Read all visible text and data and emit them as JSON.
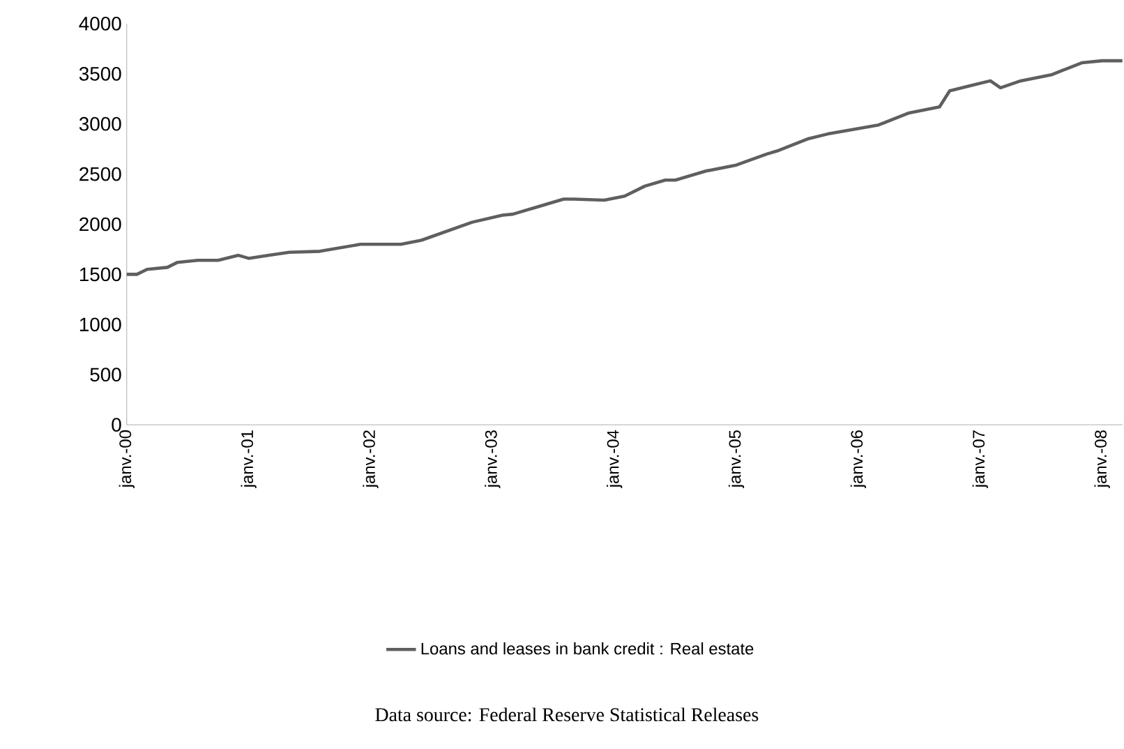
{
  "chart_data": {
    "type": "line",
    "x": [
      "2000-01",
      "2000-02",
      "2000-03",
      "2000-05",
      "2000-06",
      "2000-08",
      "2000-10",
      "2000-12",
      "2001-01",
      "2001-03",
      "2001-05",
      "2001-08",
      "2001-12",
      "2002-04",
      "2002-06",
      "2002-11",
      "2003-02",
      "2003-03",
      "2003-05",
      "2003-08",
      "2003-09",
      "2003-12",
      "2004-02",
      "2004-04",
      "2004-06",
      "2004-07",
      "2004-10",
      "2005-01",
      "2005-04",
      "2005-05",
      "2005-08",
      "2005-10",
      "2006-03",
      "2006-06",
      "2006-09",
      "2006-10",
      "2006-12",
      "2007-02",
      "2007-03",
      "2007-05",
      "2007-08",
      "2007-10",
      "2007-11",
      "2008-01",
      "2008-03"
    ],
    "series": [
      {
        "name": "Loans and leases in bank credit : Real estate",
        "color": "#5f5f5f",
        "values": [
          1500,
          1500,
          1550,
          1570,
          1620,
          1640,
          1640,
          1690,
          1660,
          1690,
          1720,
          1730,
          1800,
          1800,
          1840,
          2020,
          2090,
          2100,
          2160,
          2250,
          2250,
          2240,
          2280,
          2380,
          2440,
          2440,
          2530,
          2590,
          2700,
          2730,
          2850,
          2900,
          2990,
          3110,
          3170,
          3330,
          3380,
          3430,
          3360,
          3430,
          3490,
          3570,
          3610,
          3630,
          3630
        ]
      }
    ],
    "xlim": [
      "2000-01",
      "2008-03"
    ],
    "xticks": [
      {
        "value": "2000-01",
        "label": "janv.-00"
      },
      {
        "value": "2001-01",
        "label": "janv.-01"
      },
      {
        "value": "2002-01",
        "label": "janv.-02"
      },
      {
        "value": "2003-01",
        "label": "janv.-03"
      },
      {
        "value": "2004-01",
        "label": "janv.-04"
      },
      {
        "value": "2005-01",
        "label": "janv.-05"
      },
      {
        "value": "2006-01",
        "label": "janv.-06"
      },
      {
        "value": "2007-01",
        "label": "janv.-07"
      },
      {
        "value": "2008-01",
        "label": "janv.-08"
      }
    ],
    "ylim": [
      0,
      4000
    ],
    "yticks": [
      0,
      500,
      1000,
      1500,
      2000,
      2500,
      3000,
      3500,
      4000
    ],
    "legend": "bottom",
    "annotations": [
      "Data source: Federal Reserve Statistical Releases"
    ]
  }
}
